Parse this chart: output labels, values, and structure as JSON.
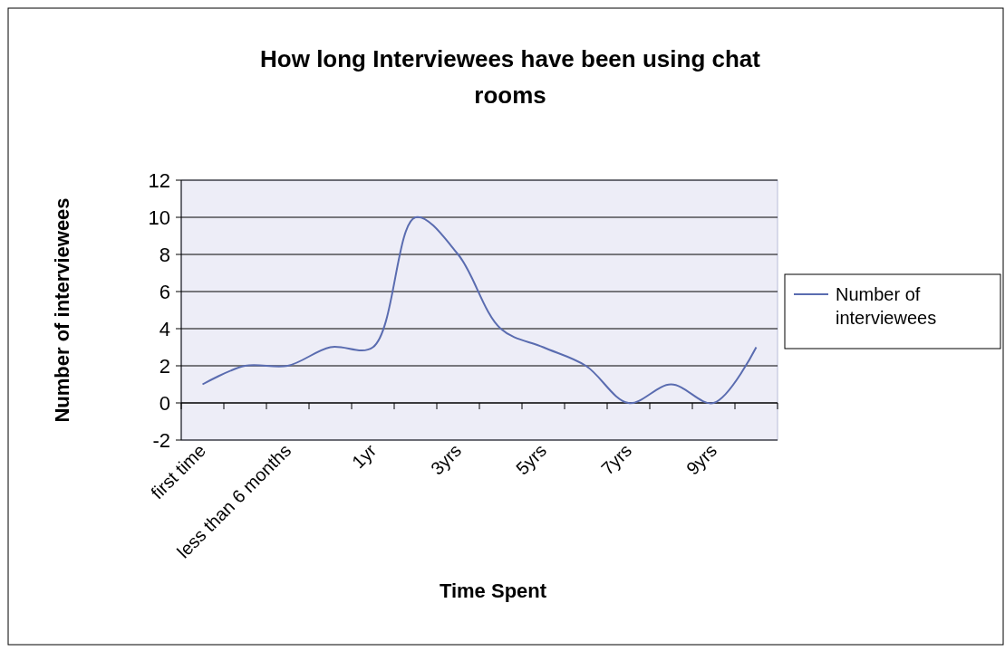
{
  "chart_data": {
    "type": "line",
    "title": "How long Interviewees have been using chat rooms",
    "xlabel": "Time Spent",
    "ylabel": "Number of interviewees",
    "categories": [
      "first time",
      null,
      "less than 6 months",
      null,
      "1yr",
      null,
      "3yrs",
      null,
      "5yrs",
      null,
      "7yrs",
      null,
      "9yrs",
      null
    ],
    "series": [
      {
        "name": "Number of interviewees",
        "color": "#5a6cb0",
        "values": [
          1,
          2,
          2,
          3,
          3,
          10,
          8,
          4,
          3,
          2,
          0,
          1,
          0,
          3
        ]
      }
    ],
    "ylim": [
      -2,
      12
    ],
    "yticks": [
      -2,
      0,
      2,
      4,
      6,
      8,
      10,
      12
    ],
    "grid": "y",
    "legend": "right",
    "marker": "none",
    "line_style": "solid"
  }
}
